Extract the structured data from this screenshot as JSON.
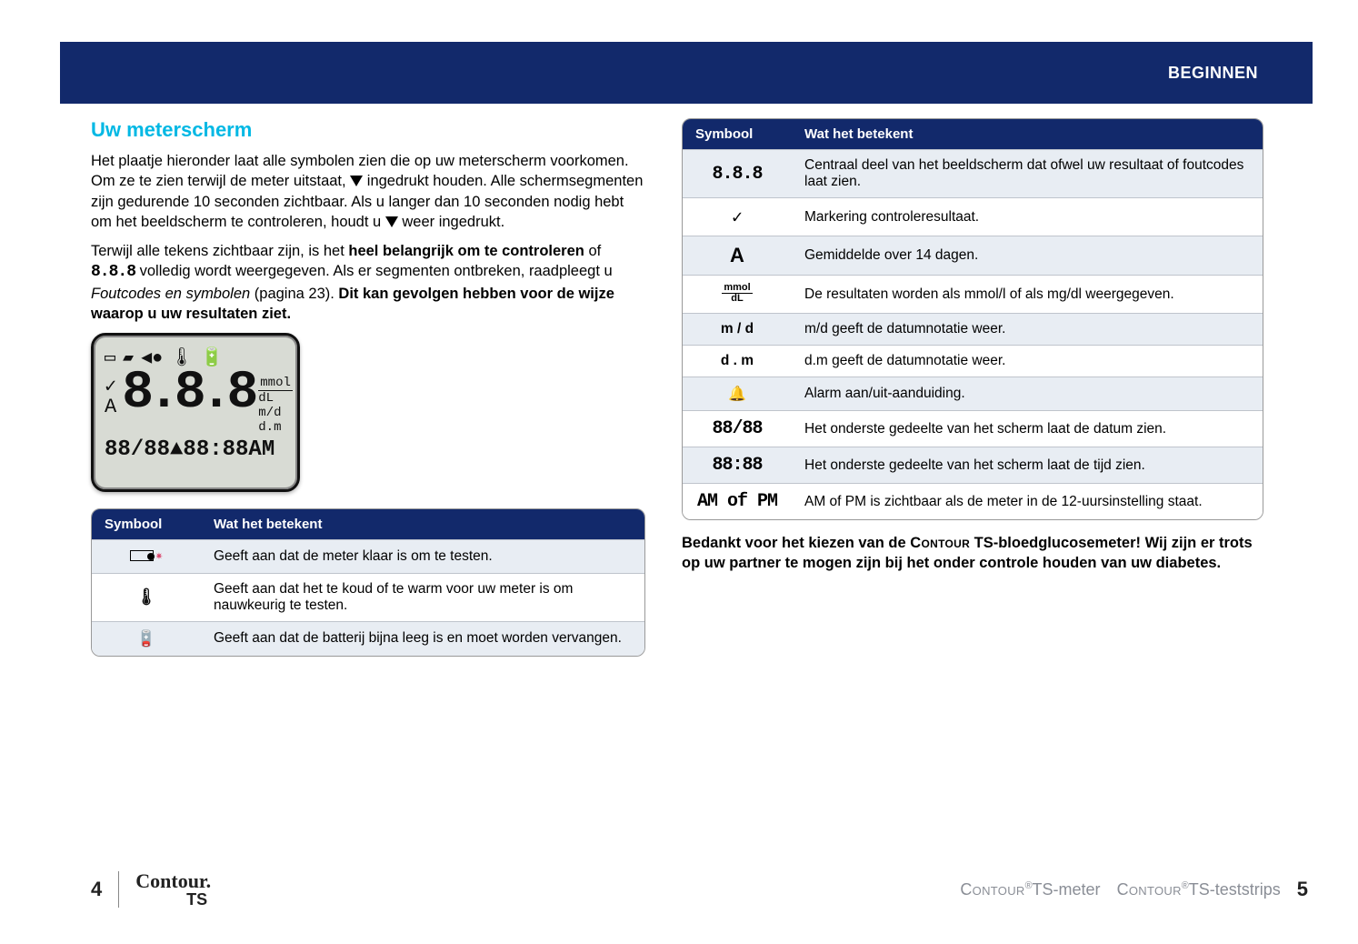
{
  "colors": {
    "header_bg": "#12296b",
    "title_cyan": "#00b8e4",
    "table_row_alt": "#e8edf3",
    "text_grey": "#8a8e96"
  },
  "header": {
    "section": "BEGINNEN"
  },
  "left": {
    "title": "Uw meterscherm",
    "p1a": "Het plaatje hieronder laat alle symbolen zien die op uw meterscherm voorkomen. Om ze te zien terwijl de meter uitstaat, ",
    "p1b": " ingedrukt houden. Alle schermsegmenten zijn gedurende 10 seconden zichtbaar. Als u langer dan 10 seconden nodig hebt om het beeldscherm te controleren, houdt u ",
    "p1c": " weer ingedrukt.",
    "p2a": "Terwijl alle tekens zichtbaar zijn, is het ",
    "p2b": "heel belangrijk om te controleren",
    "p2c": " of ",
    "p2seg": "8.8.8",
    "p2d": " volledig wordt weergegeven. Als er segmenten ontbreken, raadpleegt u ",
    "p2e": "Foutcodes en symbolen",
    "p2f": " (pagina 23). ",
    "p2g": "Dit kan gevolgen hebben voor de wijze waarop u uw resultaten ziet.",
    "meter": {
      "big": "8.8.8",
      "units": [
        "mmol",
        "dL",
        "m/d",
        "d.m"
      ],
      "bottom": "88/88▲88:88AM",
      "check": "✓",
      "avg": "A"
    },
    "table": {
      "head": [
        "Symbool",
        "Wat het betekent"
      ],
      "rows": [
        {
          "sym": "blood",
          "desc": "Geeft aan dat de meter klaar is om te testen."
        },
        {
          "sym": "therm",
          "desc": "Geeft aan dat het te koud of te warm voor uw meter is om nauwkeurig te testen."
        },
        {
          "sym": "batt",
          "desc": "Geeft aan dat de batterij bijna leeg is en moet worden vervangen."
        }
      ]
    }
  },
  "right": {
    "table": {
      "head": [
        "Symbool",
        "Wat het betekent"
      ],
      "rows": [
        {
          "sym_text": "8.8.8",
          "sym_class": "seg",
          "desc": "Centraal deel van het beeldscherm dat ofwel uw resultaat of foutcodes laat zien."
        },
        {
          "sym": "check",
          "desc": "Markering controleresultaat."
        },
        {
          "sym_text": "A",
          "sym_class": "big-a",
          "desc": "Gemiddelde over 14 dagen."
        },
        {
          "sym": "unit",
          "desc": "De resultaten worden als mmol/l of als mg/dl weergegeven."
        },
        {
          "sym_text": "m / d",
          "desc": "m/d geeft de datumnotatie weer."
        },
        {
          "sym_text": "d . m",
          "desc": "d.m geeft de datumnotatie weer."
        },
        {
          "sym": "bell",
          "desc": "Alarm aan/uit-aanduiding."
        },
        {
          "sym_text": "88/88",
          "sym_class": "seg",
          "desc": "Het onderste gedeelte van het scherm laat de datum zien."
        },
        {
          "sym_text": "88:88",
          "sym_class": "seg",
          "desc": "Het onderste gedeelte van het scherm laat de tijd zien."
        },
        {
          "sym_text": "AM of PM",
          "sym_class": "seg",
          "desc": "AM of PM is zichtbaar als de meter in de 12-uursinstelling staat."
        }
      ]
    },
    "thanks_a": "Bedankt voor het kiezen van de ",
    "thanks_b": "Contour",
    "thanks_c": " TS-bloedglucosemeter! Wij zijn er trots op uw partner te mogen zijn bij het onder controle houden van uw diabetes."
  },
  "footer": {
    "left_page": "4",
    "right_page": "5",
    "brand_top": "Contour.",
    "brand_sub": "TS",
    "prod1a": "Contour",
    "prod1b": "TS-meter",
    "prod2a": "Contour",
    "prod2b": "TS-teststrips"
  }
}
